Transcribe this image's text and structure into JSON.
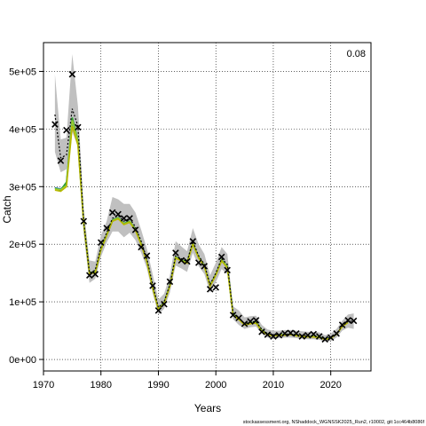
{
  "chart_data": {
    "type": "line",
    "title": "",
    "xlabel": "Years",
    "ylabel": "Catch",
    "corner_label": "0.08",
    "footer": "stockassessment.org, NShaddock_WGNSSK2025_Run2, r10002, git:1cc464b8086f",
    "xlim": [
      1970,
      2027
    ],
    "ylim": [
      -20000,
      550000
    ],
    "grid": true,
    "x_ticks": [
      1970,
      1980,
      1990,
      2000,
      2010,
      2020
    ],
    "x_tick_labels": [
      "1970",
      "1980",
      "1990",
      "2000",
      "2010",
      "2020"
    ],
    "y_ticks": [
      0,
      100000,
      200000,
      300000,
      400000,
      500000
    ],
    "y_tick_labels": [
      "0e+00",
      "1e+05",
      "2e+05",
      "3e+05",
      "4e+05",
      "5e+05"
    ],
    "colors": {
      "band": "#c0c0c0",
      "fit_line": "#000000",
      "observed": "#000000",
      "retro": [
        "#1f77b4",
        "#2ca02c",
        "#9acd32",
        "#b8b800",
        "#a8a060"
      ]
    },
    "years": [
      1972,
      1973,
      1974,
      1975,
      1976,
      1977,
      1978,
      1979,
      1980,
      1981,
      1982,
      1983,
      1984,
      1985,
      1986,
      1987,
      1988,
      1989,
      1990,
      1991,
      1992,
      1993,
      1994,
      1995,
      1996,
      1997,
      1998,
      1999,
      2000,
      2001,
      2002,
      2003,
      2004,
      2005,
      2006,
      2007,
      2008,
      2009,
      2010,
      2011,
      2012,
      2013,
      2014,
      2015,
      2016,
      2017,
      2018,
      2019,
      2020,
      2021,
      2022,
      2023,
      2024
    ],
    "fit": [
      425000,
      350000,
      355000,
      435000,
      405000,
      240000,
      150000,
      155000,
      195000,
      220000,
      245000,
      250000,
      240000,
      245000,
      230000,
      205000,
      175000,
      130000,
      90000,
      100000,
      130000,
      180000,
      175000,
      170000,
      205000,
      180000,
      165000,
      130000,
      150000,
      175000,
      165000,
      80000,
      72000,
      62000,
      65000,
      66000,
      52000,
      45000,
      43000,
      43000,
      44000,
      44000,
      43000,
      42000,
      41000,
      41000,
      40000,
      36000,
      38000,
      45000,
      58000,
      66000,
      67000
    ],
    "lower": [
      360000,
      325000,
      330000,
      395000,
      370000,
      218000,
      133000,
      140000,
      178000,
      203000,
      222000,
      222000,
      212000,
      220000,
      207000,
      185000,
      158000,
      115000,
      78000,
      88000,
      116000,
      163000,
      158000,
      152000,
      185000,
      162000,
      148000,
      116000,
      134000,
      157000,
      148000,
      70000,
      60000,
      53000,
      56000,
      57000,
      45000,
      38000,
      36000,
      37000,
      38000,
      38000,
      37000,
      36000,
      35000,
      35000,
      34000,
      31000,
      32000,
      38000,
      50000,
      55000,
      53000
    ],
    "upper": [
      495000,
      382000,
      385000,
      530000,
      440000,
      262000,
      172000,
      170000,
      215000,
      240000,
      282000,
      278000,
      270000,
      270000,
      255000,
      225000,
      192000,
      148000,
      104000,
      114000,
      146000,
      205000,
      196000,
      188000,
      228000,
      200000,
      183000,
      146000,
      168000,
      195000,
      183000,
      92000,
      85000,
      73000,
      75000,
      76000,
      60000,
      52000,
      50000,
      50000,
      51000,
      51000,
      50000,
      49000,
      48000,
      48000,
      47000,
      42000,
      45000,
      53000,
      67000,
      78000,
      80000
    ],
    "retro_lines": [
      {
        "values": [
          298000,
          296000,
          305000,
          410000,
          375000,
          235000,
          150000,
          150000,
          190000,
          215000,
          240000,
          245000,
          235000,
          238000,
          225000,
          200000,
          170000,
          125000,
          88000,
          98000,
          128000,
          177000,
          172000,
          168000,
          200000,
          177000,
          162000,
          128000,
          147000,
          172000,
          160000,
          78000,
          70000,
          61000,
          63000,
          64000,
          50000,
          44000,
          42000,
          42000,
          43000,
          43000,
          42000,
          41000,
          40000,
          40000,
          39000,
          36000,
          38000
        ]
      },
      {
        "values": [
          297000,
          294000,
          308000,
          420000,
          380000,
          238000,
          151000,
          152000,
          192000,
          217000,
          242000,
          246000,
          236000,
          240000,
          226000,
          201000,
          171000,
          126000,
          88000,
          99000,
          129000,
          178000,
          173000,
          169000,
          202000,
          178000,
          163000,
          129000,
          148000,
          173000,
          161000,
          79000,
          71000,
          61000,
          64000,
          65000,
          51000,
          44000,
          42000,
          43000,
          43000,
          44000,
          42000,
          41000,
          40000,
          40000,
          39000,
          36000,
          37000,
          44000
        ]
      },
      {
        "values": [
          296000,
          295000,
          302000,
          415000,
          378000,
          237000,
          150000,
          151000,
          191000,
          216000,
          241000,
          245000,
          235000,
          239000,
          225000,
          200000,
          170000,
          125000,
          87000,
          98000,
          128000,
          177000,
          172000,
          168000,
          201000,
          177000,
          162000,
          128000,
          147000,
          172000,
          160000,
          78000,
          70000,
          61000,
          63000,
          64000,
          50000,
          44000,
          42000,
          42000,
          43000,
          43000,
          42000,
          41000,
          40000,
          40000,
          39000,
          35000,
          37000,
          44000,
          57000
        ]
      },
      {
        "values": [
          294000,
          292000,
          300000,
          405000,
          372000,
          236000,
          149000,
          150000,
          190000,
          215000,
          240000,
          244000,
          234000,
          238000,
          224000,
          199000,
          169000,
          124000,
          87000,
          97000,
          127000,
          176000,
          171000,
          167000,
          200000,
          176000,
          161000,
          127000,
          146000,
          171000,
          159000,
          77000,
          69000,
          60000,
          62000,
          63000,
          49000,
          43000,
          41000,
          42000,
          42000,
          43000,
          41000,
          40000,
          39000,
          39000,
          38000,
          35000,
          37000,
          44000,
          57000,
          64000
        ]
      }
    ],
    "observed": [
      408000,
      345000,
      398000,
      495000,
      403000,
      240000,
      146000,
      148000,
      203000,
      228000,
      255000,
      252000,
      245000,
      245000,
      225000,
      195000,
      180000,
      128000,
      85000,
      96000,
      135000,
      185000,
      172000,
      170000,
      205000,
      168000,
      162000,
      122000,
      125000,
      178000,
      155000,
      77000,
      72000,
      62000,
      66000,
      68000,
      48000,
      43000,
      40000,
      42000,
      45000,
      46000,
      45000,
      40000,
      42000,
      44000,
      40000,
      35000,
      38000,
      45000,
      60000,
      68000,
      67000
    ]
  }
}
